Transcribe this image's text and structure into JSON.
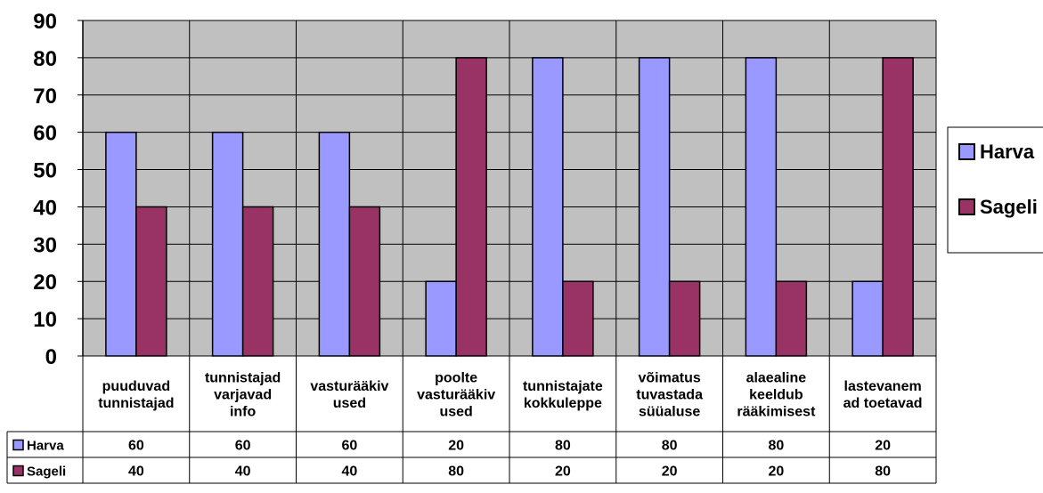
{
  "chart_data": {
    "type": "bar",
    "categories": [
      [
        "puuduvad",
        "tunnistajad"
      ],
      [
        "tunnistajad",
        "varjavad",
        "info"
      ],
      [
        "vasturääkiv",
        "used"
      ],
      [
        "poolte",
        "vasturääkiv",
        "used"
      ],
      [
        "tunnistajate",
        "kokkuleppe"
      ],
      [
        "võimatus",
        "tuvastada",
        "süüaluse"
      ],
      [
        "alaealine",
        "keeldub",
        "rääkimisest"
      ],
      [
        "lastevanem",
        "ad toetavad"
      ]
    ],
    "series": [
      {
        "name": "Harva",
        "values": [
          60,
          60,
          60,
          20,
          80,
          80,
          80,
          20
        ],
        "color": "#9999ff"
      },
      {
        "name": "Sageli",
        "values": [
          40,
          40,
          40,
          80,
          20,
          20,
          20,
          80
        ],
        "color": "#993366"
      }
    ],
    "ylim": [
      0,
      90
    ],
    "yticks": [
      0,
      10,
      20,
      30,
      40,
      50,
      60,
      70,
      80,
      90
    ],
    "plot_background": "#c0c0c0",
    "grid": true,
    "legend": "right",
    "data_table": true
  }
}
